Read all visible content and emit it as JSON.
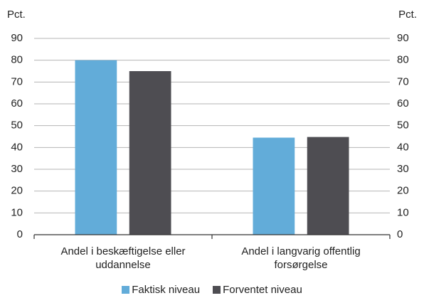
{
  "chart_data": {
    "type": "bar",
    "y_label": "Pct.",
    "y2_label": "Pct.",
    "categories": [
      "Andel i beskæftigelse eller uddannelse",
      "Andel i langvarig offentlig forsørgelse"
    ],
    "series": [
      {
        "name": "Faktisk niveau",
        "color": "#62acd9",
        "values": [
          80,
          44.5
        ]
      },
      {
        "name": "Forventet niveau",
        "color": "#4e4d52",
        "values": [
          75,
          44.8
        ]
      }
    ],
    "ylim": [
      0,
      90
    ],
    "yticks": [
      0,
      10,
      20,
      30,
      40,
      50,
      60,
      70,
      80,
      90
    ],
    "y2lim": [
      0,
      90
    ],
    "y2ticks": [
      0,
      10,
      20,
      30,
      40,
      50,
      60,
      70,
      80,
      90
    ],
    "grid": true,
    "legend": "bottom"
  }
}
